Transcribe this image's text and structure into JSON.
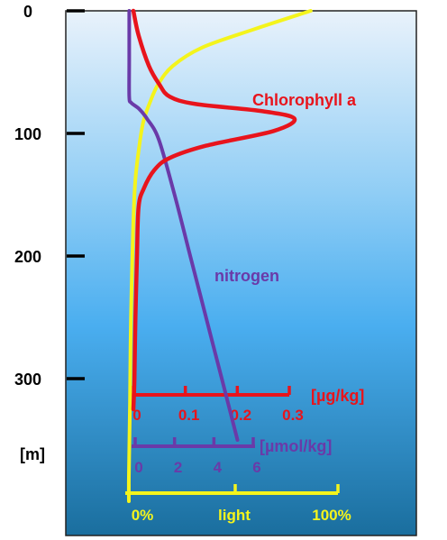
{
  "chart_data": {
    "type": "line",
    "title": "",
    "depth_axis": {
      "ticks": [
        "0",
        "100",
        "200",
        "300"
      ],
      "tick_values": [
        0,
        100,
        200,
        300
      ],
      "unit_label": "[m]",
      "ylim": [
        0,
        400
      ]
    },
    "series": [
      {
        "name": "Chlorophyll a",
        "color": "#e8141c",
        "x_unit": "[µg/kg]",
        "x_ticks": [
          "0",
          "0.1",
          "0.2",
          "0.3"
        ],
        "x_tick_values": [
          0,
          0.1,
          0.2,
          0.3
        ],
        "xlim": [
          0,
          0.3
        ],
        "points": [
          [
            0,
            0
          ],
          [
            0.01,
            20
          ],
          [
            0.03,
            45
          ],
          [
            0.05,
            60
          ],
          [
            0.07,
            70
          ],
          [
            0.12,
            76
          ],
          [
            0.25,
            82
          ],
          [
            0.31,
            88
          ],
          [
            0.27,
            98
          ],
          [
            0.14,
            110
          ],
          [
            0.07,
            120
          ],
          [
            0.04,
            130
          ],
          [
            0.02,
            145
          ],
          [
            0.01,
            160
          ],
          [
            0.007,
            200
          ],
          [
            0.004,
            250
          ],
          [
            0.002,
            300
          ],
          [
            0,
            325
          ]
        ]
      },
      {
        "name": "nitrogen",
        "color": "#6a3aa8",
        "x_unit": "[µmol/kg]",
        "x_ticks": [
          "0",
          "2",
          "4",
          "6"
        ],
        "x_tick_values": [
          0,
          2,
          4,
          6
        ],
        "xlim": [
          0,
          6
        ],
        "points": [
          [
            -0.3,
            0
          ],
          [
            -0.3,
            40
          ],
          [
            -0.3,
            70
          ],
          [
            -0.2,
            75
          ],
          [
            0.2,
            80
          ],
          [
            0.6,
            88
          ],
          [
            1.2,
            105
          ],
          [
            2.0,
            150
          ],
          [
            2.8,
            200
          ],
          [
            3.6,
            250
          ],
          [
            4.4,
            300
          ],
          [
            5.2,
            350
          ]
        ]
      },
      {
        "name": "light",
        "color": "#f4f41c",
        "x_unit": "",
        "x_ticks": [
          "0%",
          "100%"
        ],
        "x_tick_values": [
          0,
          100
        ],
        "xlim": [
          0,
          100
        ],
        "points": [
          [
            87,
            0
          ],
          [
            60,
            15
          ],
          [
            35,
            30
          ],
          [
            21,
            45
          ],
          [
            14,
            60
          ],
          [
            10,
            75
          ],
          [
            7,
            90
          ],
          [
            5,
            110
          ],
          [
            3,
            140
          ],
          [
            2,
            180
          ],
          [
            1,
            250
          ],
          [
            0.5,
            320
          ],
          [
            0,
            380
          ],
          [
            0,
            400
          ]
        ]
      }
    ],
    "axis_caption": "light",
    "grid": false,
    "background": {
      "top": "#e9f2fb",
      "mid": "#4aaef0",
      "bottom": "#1a6e9e"
    }
  }
}
